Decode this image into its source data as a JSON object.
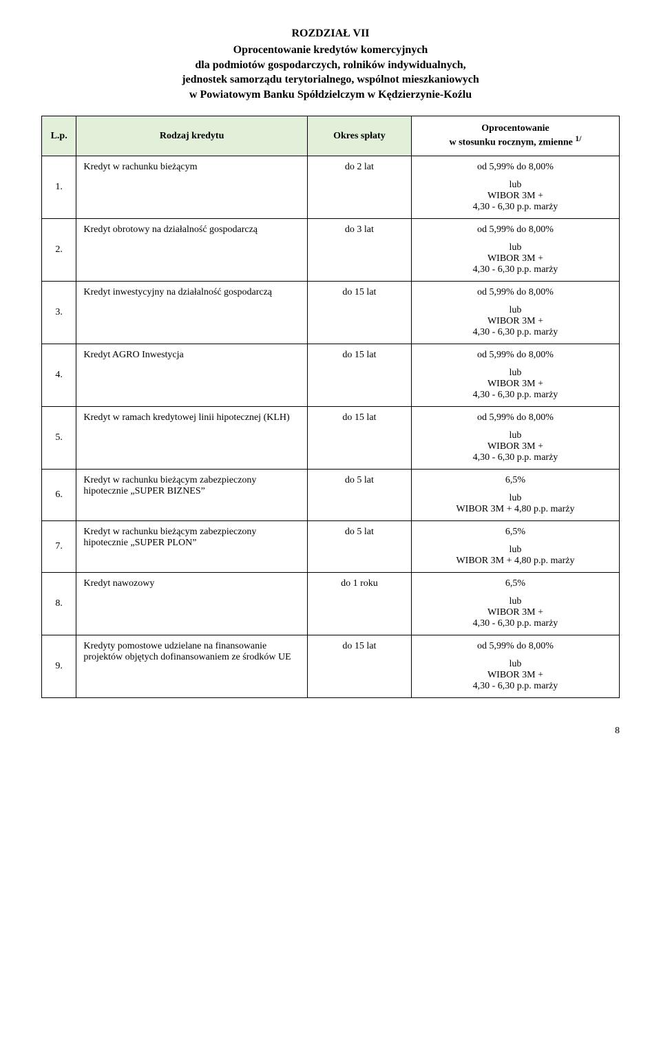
{
  "header": {
    "chapter": "ROZDZIAŁ VII",
    "title_line1": "Oprocentowanie kredytów komercyjnych",
    "title_line2": "dla podmiotów gospodarczych, rolników indywidualnych,",
    "title_line3": "jednostek samorządu terytorialnego, wspólnot mieszkaniowych",
    "title_line4": "w Powiatowym Banku Spółdzielczym w Kędzierzynie-Koźlu"
  },
  "table": {
    "headers": {
      "lp": "L.p.",
      "rodzaj": "Rodzaj kredytu",
      "okres": "Okres spłaty",
      "oproc_line1": "Oprocentowanie",
      "oproc_line2": "w stosunku rocznym, zmienne ",
      "oproc_sup": "1/"
    },
    "rows": [
      {
        "lp": "1.",
        "rodzaj": "Kredyt w rachunku bieżącym",
        "okres": "do 2 lat",
        "oproc_line1": "od 5,99% do 8,00%",
        "oproc_lub": "lub",
        "oproc_formula_l1": "WIBOR 3M +",
        "oproc_formula_l2": "4,30 - 6,30 p.p. marży"
      },
      {
        "lp": "2.",
        "rodzaj": "Kredyt obrotowy na działalność gospodarczą",
        "okres": "do 3 lat",
        "oproc_line1": "od 5,99% do 8,00%",
        "oproc_lub": "lub",
        "oproc_formula_l1": "WIBOR 3M +",
        "oproc_formula_l2": "4,30 - 6,30 p.p. marży"
      },
      {
        "lp": "3.",
        "rodzaj": "Kredyt inwestycyjny na działalność gospodarczą",
        "okres": "do 15 lat",
        "oproc_line1": "od 5,99% do 8,00%",
        "oproc_lub": "lub",
        "oproc_formula_l1": "WIBOR 3M +",
        "oproc_formula_l2": "4,30 - 6,30 p.p. marży"
      },
      {
        "lp": "4.",
        "rodzaj": "Kredyt AGRO Inwestycja",
        "okres": "do 15 lat",
        "oproc_line1": "od 5,99% do 8,00%",
        "oproc_lub": "lub",
        "oproc_formula_l1": "WIBOR 3M +",
        "oproc_formula_l2": "4,30 - 6,30 p.p. marży"
      },
      {
        "lp": "5.",
        "rodzaj": "Kredyt w ramach kredytowej linii hipotecznej (KLH)",
        "okres": "do 15 lat",
        "oproc_line1": "od 5,99% do 8,00%",
        "oproc_lub": "lub",
        "oproc_formula_l1": "WIBOR 3M +",
        "oproc_formula_l2": "4,30 - 6,30 p.p. marży"
      },
      {
        "lp": "6.",
        "rodzaj": "Kredyt w rachunku bieżącym zabezpieczony hipotecznie „SUPER BIZNES”",
        "okres": "do 5 lat",
        "oproc_line1": "6,5%",
        "oproc_lub": "lub",
        "oproc_formula_l1": "WIBOR 3M + 4,80 p.p. marży",
        "oproc_formula_l2": ""
      },
      {
        "lp": "7.",
        "rodzaj": "Kredyt w rachunku bieżącym zabezpieczony hipotecznie „SUPER PLON”",
        "okres": "do 5 lat",
        "oproc_line1": "6,5%",
        "oproc_lub": "lub",
        "oproc_formula_l1": "WIBOR 3M + 4,80 p.p. marży",
        "oproc_formula_l2": ""
      },
      {
        "lp": "8.",
        "rodzaj": "Kredyt  nawozowy",
        "okres": "do 1 roku",
        "oproc_line1": "6,5%",
        "oproc_lub": "lub",
        "oproc_formula_l1": "WIBOR 3M +",
        "oproc_formula_l2": "4,30 - 6,30 p.p. marży"
      },
      {
        "lp": "9.",
        "rodzaj": "Kredyty pomostowe udzielane na finansowanie projektów objętych dofinansowaniem ze środków UE",
        "okres": "do 15 lat",
        "oproc_line1": "od 5,99% do 8,00%",
        "oproc_lub": "lub",
        "oproc_formula_l1": "WIBOR 3M +",
        "oproc_formula_l2": "4,30 - 6,30 p.p. marży"
      }
    ]
  },
  "page_number": "8",
  "style": {
    "header_bg": "#e2f0d9",
    "border_color": "#000000",
    "font_family": "Times New Roman"
  }
}
